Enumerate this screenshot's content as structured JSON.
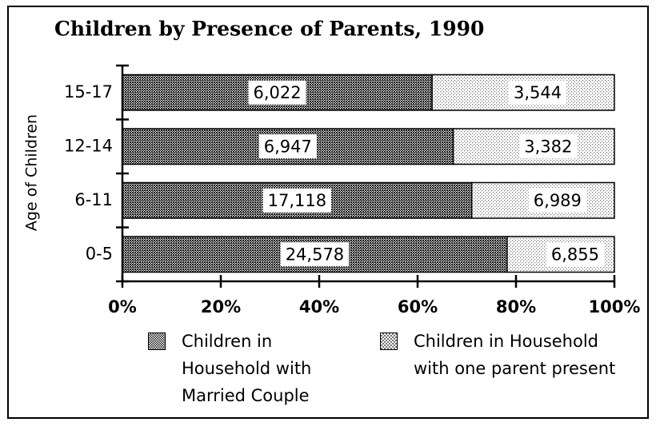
{
  "chart_data": {
    "type": "bar",
    "orientation": "horizontal",
    "stacking": "percent",
    "title": "Children by Presence of Parents, 1990",
    "y_label": "Age of Children",
    "categories": [
      "0-5",
      "6-11",
      "12-14",
      "15-17"
    ],
    "series": [
      {
        "name": "Children in Household with Married Couple",
        "color": "#1a1a1a",
        "values": [
          24578,
          17118,
          6947,
          6022
        ],
        "value_labels": [
          "24,578",
          "17,118",
          "6,947",
          "6,022"
        ]
      },
      {
        "name": "Children in Household with one parent present",
        "color": "#777777",
        "values": [
          6855,
          6989,
          3382,
          3544
        ],
        "value_labels": [
          "6,855",
          "6,989",
          "3,382",
          "3,544"
        ]
      }
    ],
    "xlim": [
      0,
      100
    ],
    "xticks": [
      {
        "value": 0,
        "label": "0%"
      },
      {
        "value": 20,
        "label": "20%"
      },
      {
        "value": 40,
        "label": "40%"
      },
      {
        "value": 60,
        "label": "60%"
      },
      {
        "value": 80,
        "label": "80%"
      },
      {
        "value": 100,
        "label": "100%"
      }
    ],
    "legend": "bottom",
    "grid": false
  }
}
